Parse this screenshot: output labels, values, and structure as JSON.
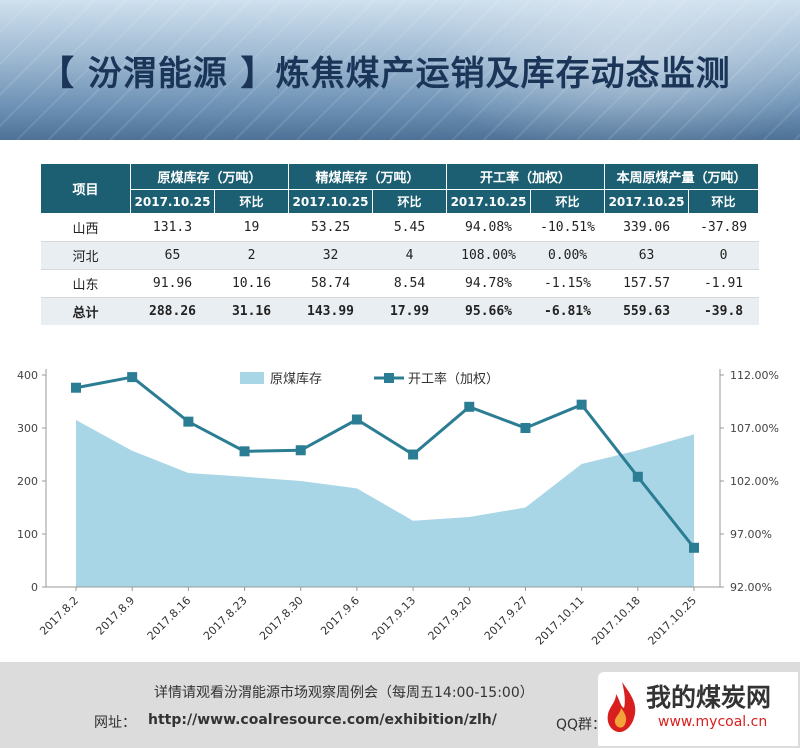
{
  "header": {
    "title": "【 汾渭能源 】炼焦煤产运销及库存动态监测"
  },
  "table": {
    "item_header": "项目",
    "groups": [
      {
        "label": "原煤库存（万吨）",
        "date": "2017.10.25",
        "change": "环比"
      },
      {
        "label": "精煤库存（万吨）",
        "date": "2017.10.25",
        "change": "环比"
      },
      {
        "label": "开工率（加权）",
        "date": "2017.10.25",
        "change": "环比"
      },
      {
        "label": "本周原煤产量（万吨）",
        "date": "2017.10.25",
        "change": "环比"
      }
    ],
    "rows": [
      {
        "name": "山西",
        "cells": [
          "131.3",
          "19",
          "53.25",
          "5.45",
          "94.08%",
          "-10.51%",
          "339.06",
          "-37.89"
        ]
      },
      {
        "name": "河北",
        "cells": [
          "65",
          "2",
          "32",
          "4",
          "108.00%",
          "0.00%",
          "63",
          "0"
        ]
      },
      {
        "name": "山东",
        "cells": [
          "91.96",
          "10.16",
          "58.74",
          "8.54",
          "94.78%",
          "-1.15%",
          "157.57",
          "-1.91"
        ]
      }
    ],
    "total": {
      "name": "总计",
      "cells": [
        "288.26",
        "31.16",
        "143.99",
        "17.99",
        "95.66%",
        "-6.81%",
        "559.63",
        "-39.8"
      ]
    }
  },
  "chart_data": {
    "type": "line",
    "categories": [
      "2017.8.2",
      "2017.8.9",
      "2017.8.16",
      "2017.8.23",
      "2017.8.30",
      "2017.9.6",
      "2017.9.13",
      "2017.9.20",
      "2017.9.27",
      "2017.10.11",
      "2017.10.18",
      "2017.10.25"
    ],
    "series": [
      {
        "name": "原煤库存",
        "chart": "area",
        "axis": "left",
        "values": [
          315,
          257,
          215,
          208,
          200,
          186,
          125,
          132,
          150,
          232,
          258,
          288
        ],
        "color": "#a9d6e6"
      },
      {
        "name": "开工率（加权）",
        "chart": "line",
        "axis": "right",
        "values": [
          110.8,
          111.8,
          107.6,
          104.8,
          104.9,
          107.8,
          104.5,
          109.0,
          107.0,
          109.2,
          102.4,
          95.7
        ],
        "color": "#2b7d93"
      }
    ],
    "y_left": {
      "min": 0,
      "max": 400,
      "ticks": [
        "0",
        "100",
        "200",
        "300",
        "400"
      ]
    },
    "y_right": {
      "min": 92,
      "max": 112,
      "ticks": [
        "92.00%",
        "97.00%",
        "102.00%",
        "107.00%",
        "112.00%"
      ]
    },
    "legend_position": "top-center",
    "grid": false
  },
  "footer": {
    "line1": "详情请观看汾渭能源市场观察周例会（每周五14:00-15:00）",
    "label": "网址：",
    "url": "http://www.coalresource.com/exhibition/zlh/",
    "qq": "QQ群：",
    "logo_text": "我的煤炭网",
    "logo_url": "www.mycoal.cn"
  }
}
